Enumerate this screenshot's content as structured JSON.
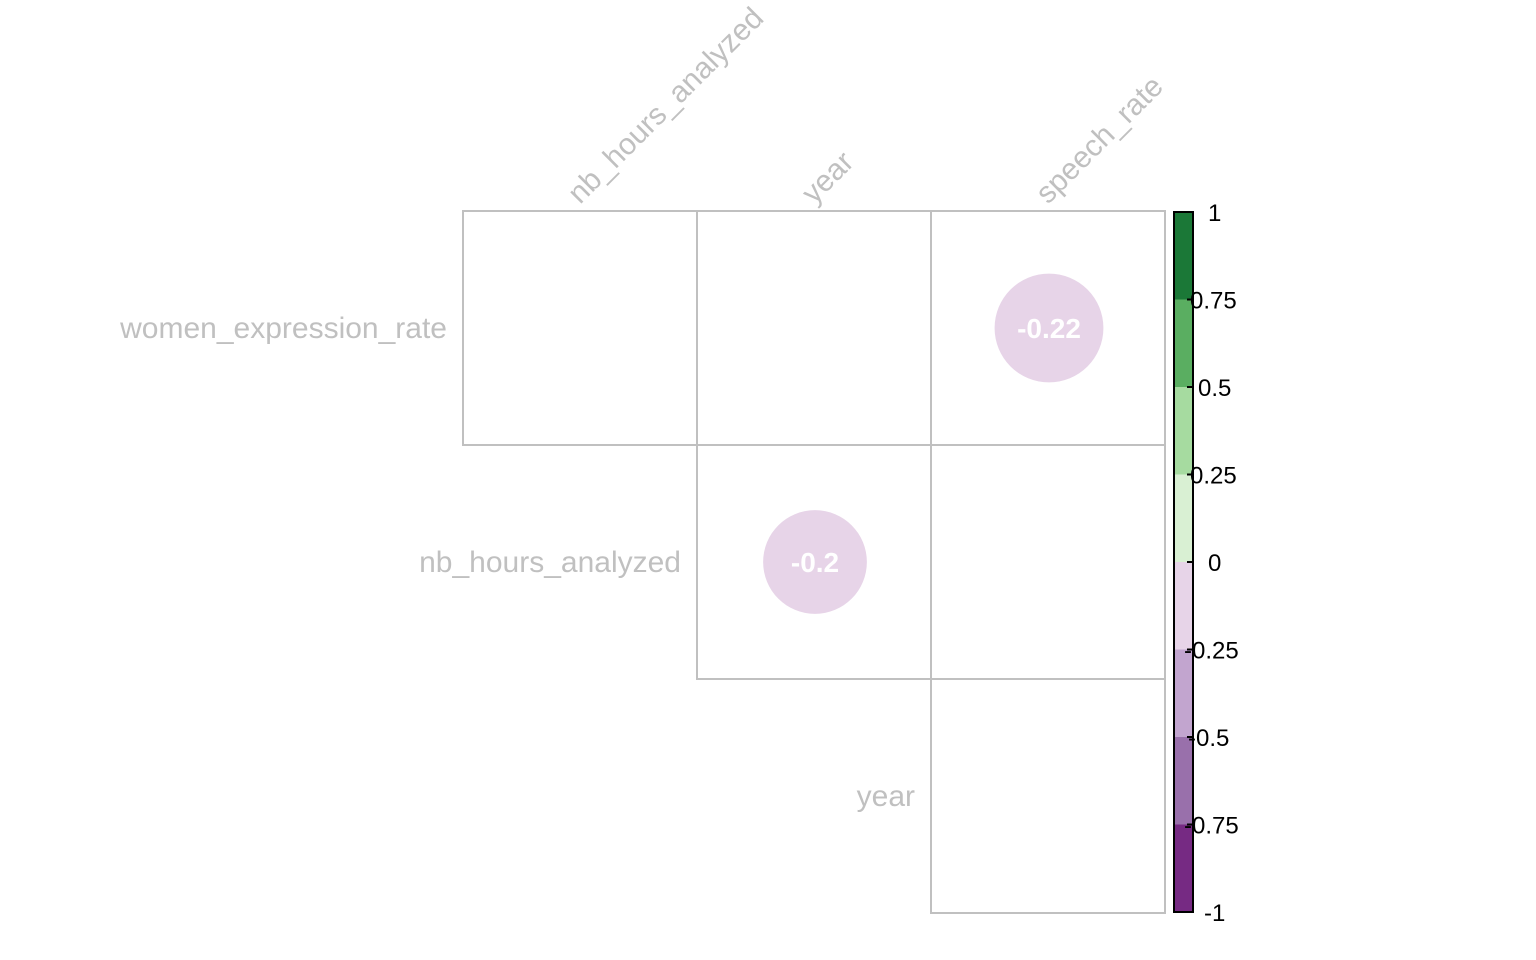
{
  "chart_data": {
    "type": "heatmap",
    "variant": "correlation-matrix-upper-triangle-circles",
    "columns": [
      "nb_hours_analyzed",
      "year",
      "speech_rate"
    ],
    "rows": [
      "women_expression_rate",
      "nb_hours_analyzed",
      "year"
    ],
    "cells": [
      {
        "row": 0,
        "col": 0,
        "value": null
      },
      {
        "row": 0,
        "col": 1,
        "value": null
      },
      {
        "row": 0,
        "col": 2,
        "value": -0.22,
        "label": "-0.22"
      },
      {
        "row": 1,
        "col": 1,
        "value": -0.2,
        "label": "-0.2"
      },
      {
        "row": 1,
        "col": 2,
        "value": null
      },
      {
        "row": 2,
        "col": 2,
        "value": null
      }
    ],
    "colorbar": {
      "range": [
        -1,
        1
      ],
      "tick_labels": [
        "1",
        "0.75",
        "0.5",
        "0.25",
        "0",
        "-0.25",
        "-0.5",
        "-0.75",
        "-1"
      ],
      "tick_values": [
        1,
        0.75,
        0.5,
        0.25,
        0,
        -0.25,
        -0.5,
        -0.75,
        -1
      ],
      "bins_top_to_bottom": [
        "#1b7837",
        "#5aae61",
        "#a6dba0",
        "#d9f0d3",
        "#e7d4e8",
        "#c2a5cf",
        "#9970ab",
        "#762a83"
      ]
    },
    "label_color": "#c0c0c0",
    "grid_color": "#c0c0c0",
    "value_text_color": "#ffffff",
    "legend_position": "right"
  }
}
